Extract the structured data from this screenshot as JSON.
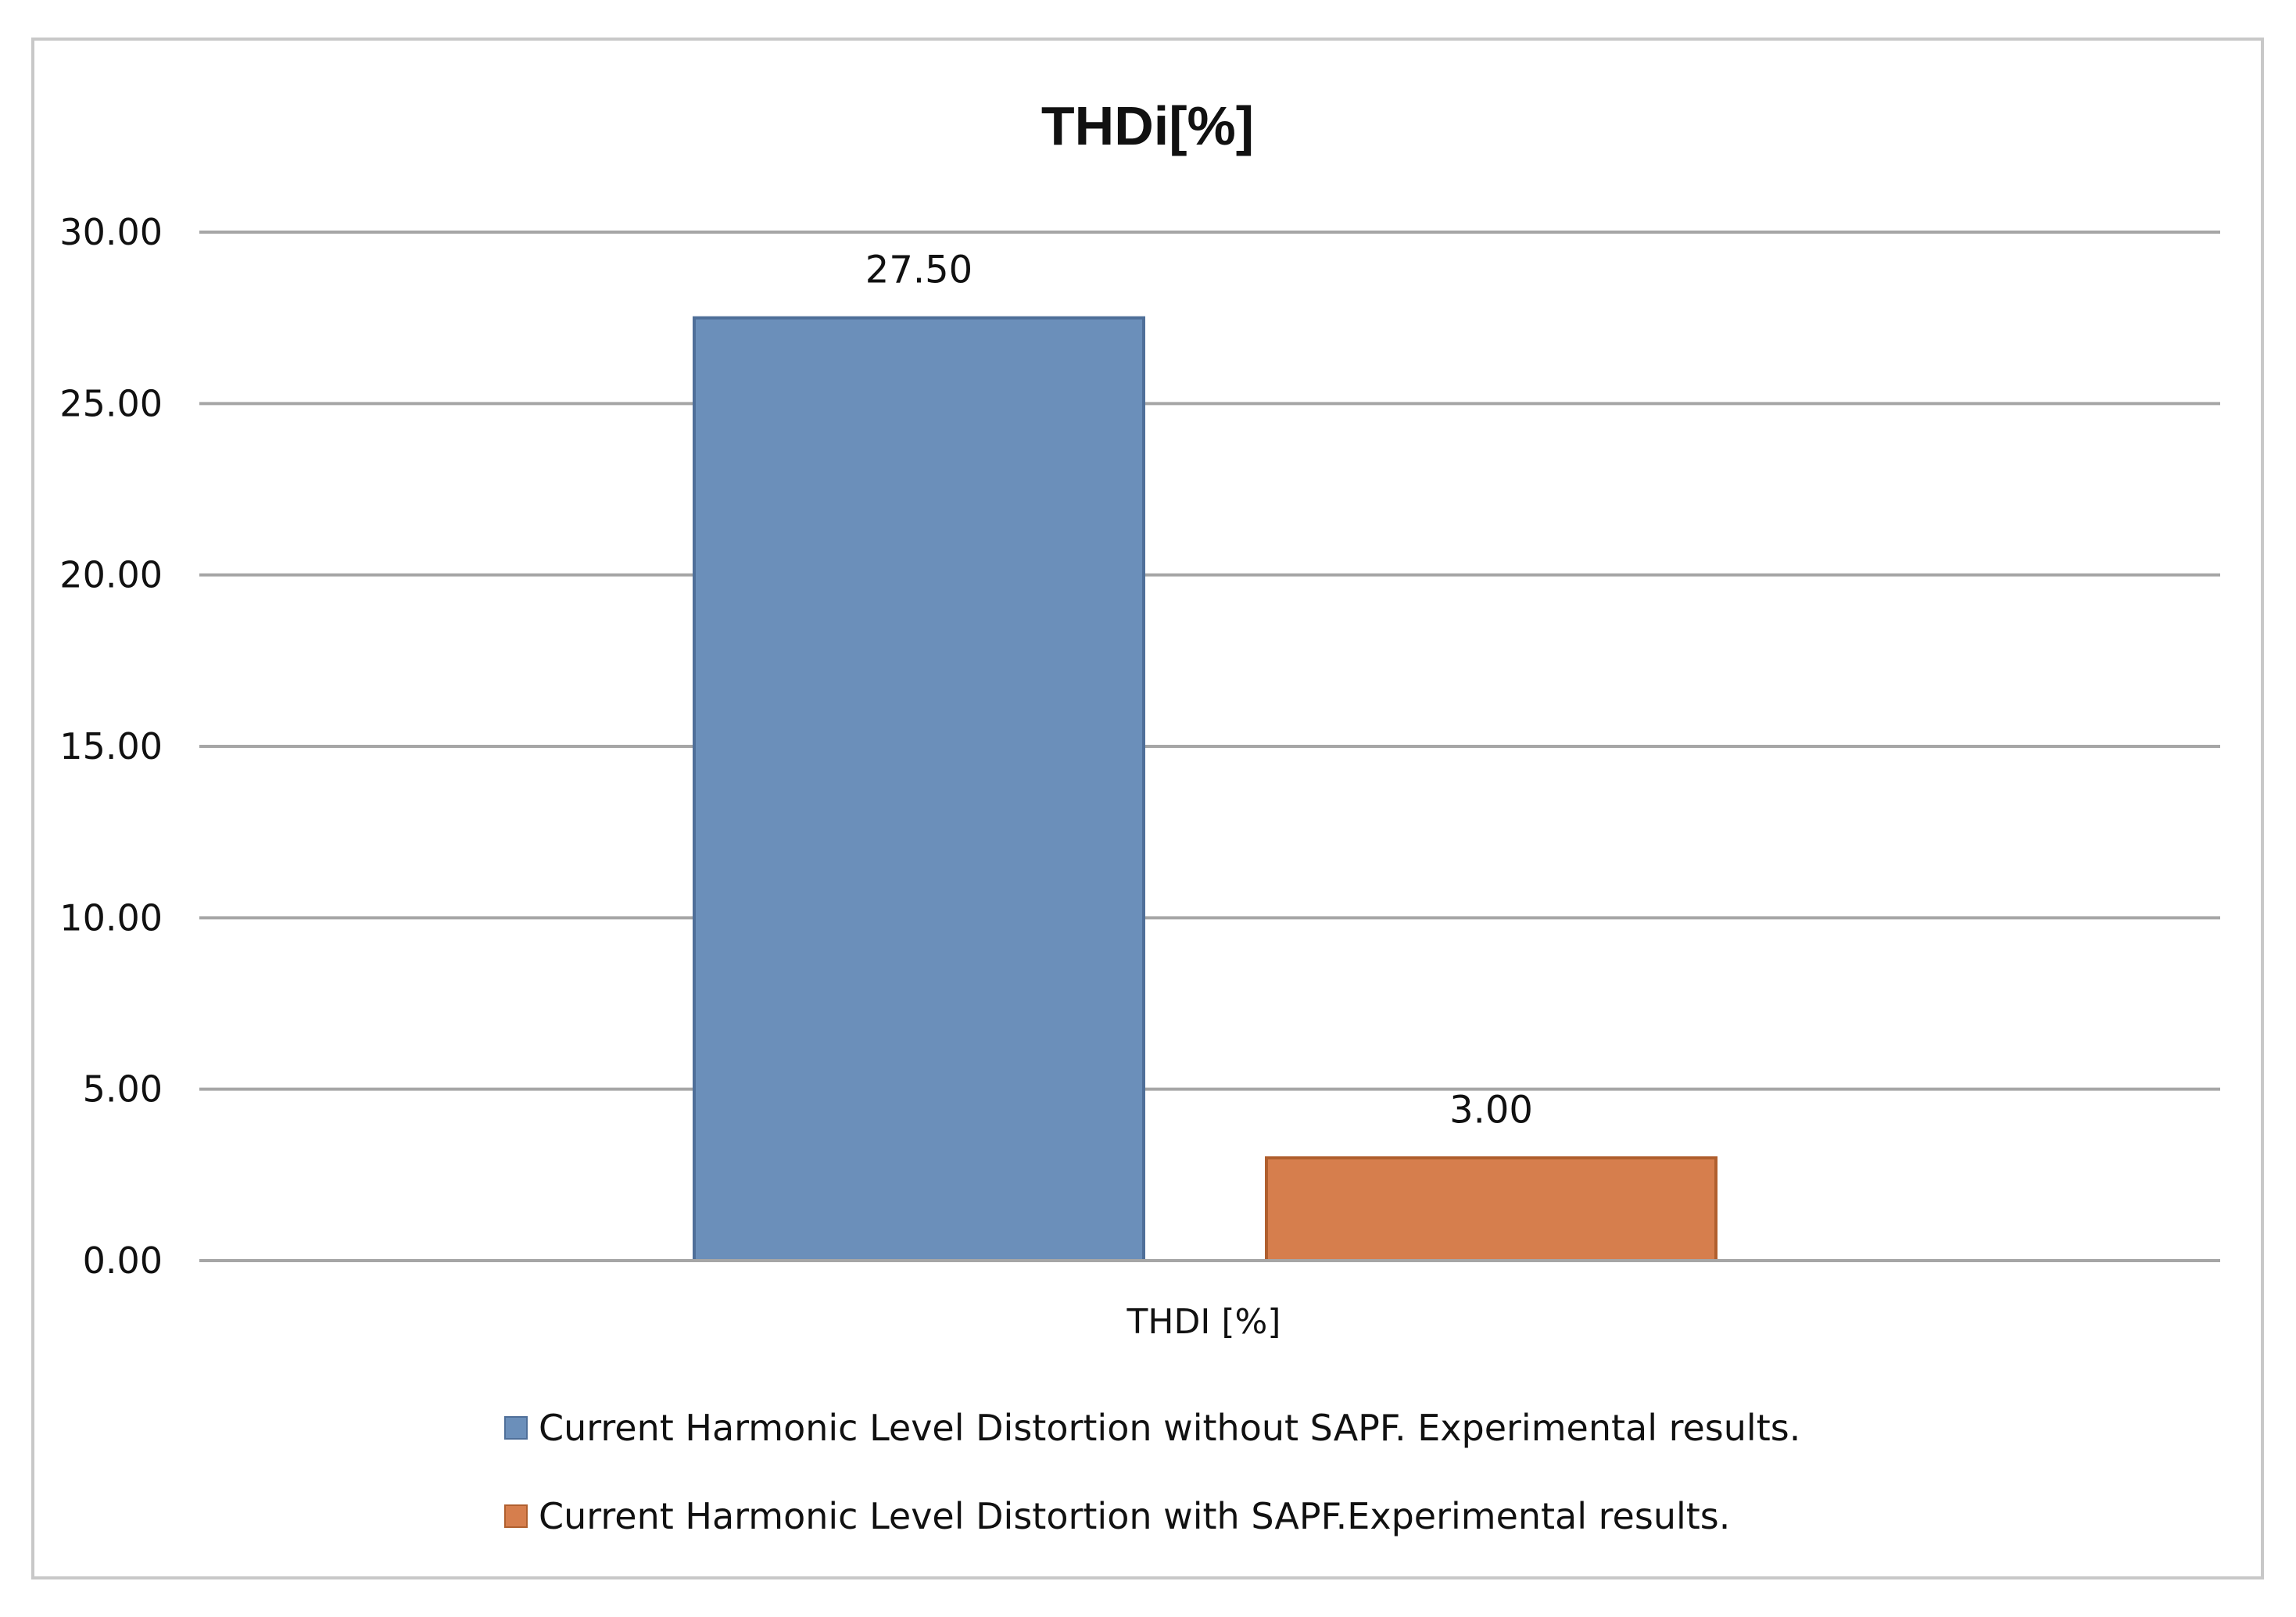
{
  "chart_data": {
    "type": "bar",
    "title": "THDi[%]",
    "categories": [
      "THDI [%]"
    ],
    "series": [
      {
        "name": "Current Harmonic Level Distortion without SAPF. Experimental results.",
        "values": [
          27.5
        ],
        "value_label": "27.50",
        "color": "#6b8fba",
        "stroke": "#4f6f99"
      },
      {
        "name": "Current Harmonic Level Distortion with SAPF.Experimental results.",
        "values": [
          3.0
        ],
        "value_label": "3.00",
        "color": "#d67e4d",
        "stroke": "#b05f2e"
      }
    ],
    "ylim": [
      0,
      30
    ],
    "yticks": [
      "0.00",
      "5.00",
      "10.00",
      "15.00",
      "20.00",
      "25.00",
      "30.00"
    ],
    "ytick_values": [
      0,
      5,
      10,
      15,
      20,
      25,
      30
    ],
    "grid": true,
    "legend_position": "bottom",
    "gridline_color": "#a6a6a6"
  }
}
